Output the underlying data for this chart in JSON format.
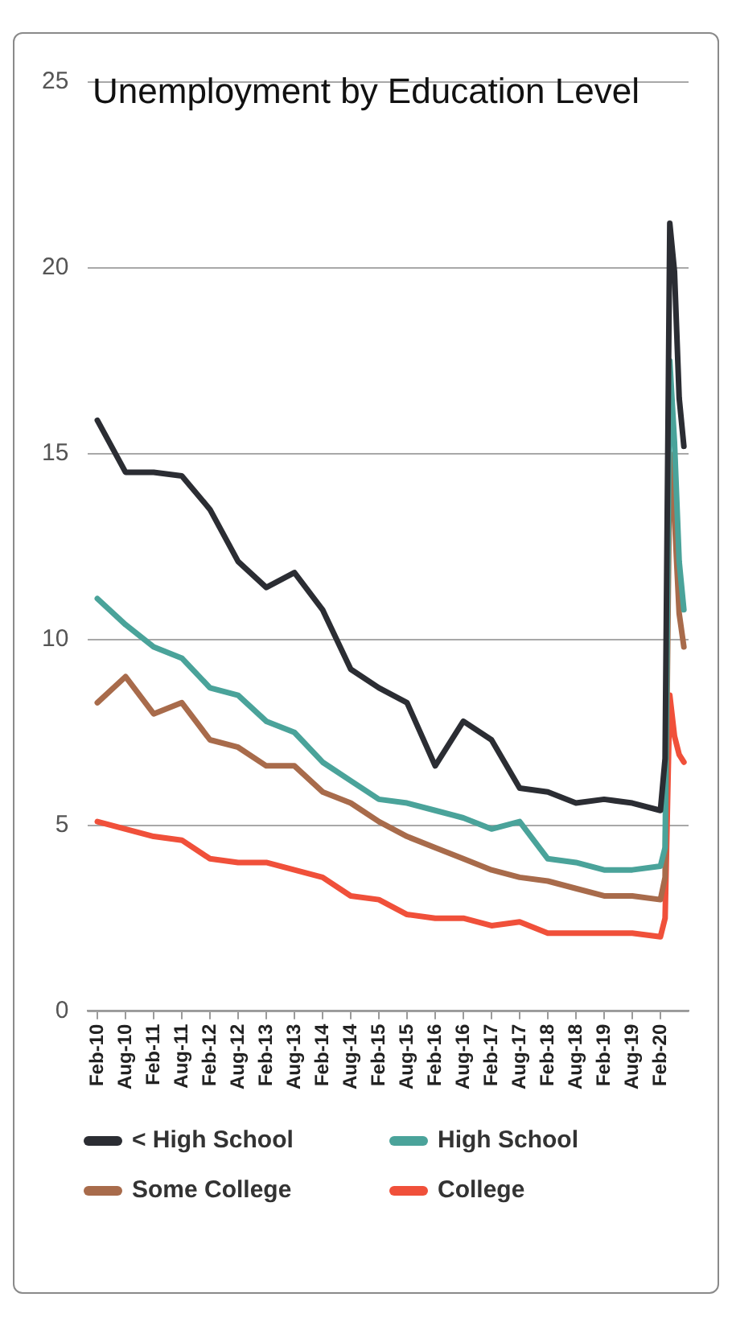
{
  "chart_data": {
    "type": "line",
    "title": "Unemployment by Education Level",
    "x": [
      "2010-02",
      "2010-08",
      "2011-02",
      "2011-08",
      "2012-02",
      "2012-08",
      "2013-02",
      "2013-08",
      "2014-02",
      "2014-08",
      "2015-02",
      "2015-08",
      "2016-02",
      "2016-08",
      "2017-02",
      "2017-08",
      "2018-02",
      "2018-08",
      "2019-02",
      "2019-08",
      "2020-02",
      "2020-03",
      "2020-04",
      "2020-05",
      "2020-06",
      "2020-07"
    ],
    "series": [
      {
        "name": "< High School",
        "color": "#2b2d33",
        "values": [
          15.9,
          14.5,
          14.5,
          14.4,
          13.5,
          12.1,
          11.4,
          11.8,
          10.8,
          9.2,
          8.7,
          8.3,
          6.6,
          7.8,
          7.3,
          6.0,
          5.9,
          5.6,
          5.7,
          5.6,
          5.4,
          6.8,
          21.2,
          19.9,
          16.5,
          15.2
        ]
      },
      {
        "name": "High School",
        "color": "#4aa39a",
        "values": [
          11.1,
          10.4,
          9.8,
          9.5,
          8.7,
          8.5,
          7.8,
          7.5,
          6.7,
          6.2,
          5.7,
          5.6,
          5.4,
          5.2,
          4.9,
          5.1,
          4.1,
          4.0,
          3.8,
          3.8,
          3.9,
          4.4,
          17.5,
          15.3,
          12.1,
          10.8
        ]
      },
      {
        "name": "Some College",
        "color": "#a86b4b",
        "values": [
          8.3,
          9.0,
          8.0,
          8.3,
          7.3,
          7.1,
          6.6,
          6.6,
          5.9,
          5.6,
          5.1,
          4.7,
          4.4,
          4.1,
          3.8,
          3.6,
          3.5,
          3.3,
          3.1,
          3.1,
          3.0,
          3.6,
          15.0,
          13.3,
          10.7,
          9.8
        ]
      },
      {
        "name": "College",
        "color": "#f0503a",
        "values": [
          5.1,
          4.9,
          4.7,
          4.6,
          4.1,
          4.0,
          4.0,
          3.8,
          3.6,
          3.1,
          3.0,
          2.6,
          2.5,
          2.5,
          2.3,
          2.4,
          2.1,
          2.1,
          2.1,
          2.1,
          2.0,
          2.5,
          8.5,
          7.4,
          6.9,
          6.7
        ]
      }
    ],
    "xlim": [
      "2009-12",
      "2020-08"
    ],
    "xticks": [
      {
        "value": "2010-02",
        "label": "Feb-10"
      },
      {
        "value": "2010-08",
        "label": "Aug-10"
      },
      {
        "value": "2011-02",
        "label": "Feb-11"
      },
      {
        "value": "2011-08",
        "label": "Aug-11"
      },
      {
        "value": "2012-02",
        "label": "Feb-12"
      },
      {
        "value": "2012-08",
        "label": "Aug-12"
      },
      {
        "value": "2013-02",
        "label": "Feb-13"
      },
      {
        "value": "2013-08",
        "label": "Aug-13"
      },
      {
        "value": "2014-02",
        "label": "Feb-14"
      },
      {
        "value": "2014-08",
        "label": "Aug-14"
      },
      {
        "value": "2015-02",
        "label": "Feb-15"
      },
      {
        "value": "2015-08",
        "label": "Aug-15"
      },
      {
        "value": "2016-02",
        "label": "Feb-16"
      },
      {
        "value": "2016-08",
        "label": "Aug-16"
      },
      {
        "value": "2017-02",
        "label": "Feb-17"
      },
      {
        "value": "2017-08",
        "label": "Aug-17"
      },
      {
        "value": "2018-02",
        "label": "Feb-18"
      },
      {
        "value": "2018-08",
        "label": "Aug-18"
      },
      {
        "value": "2019-02",
        "label": "Feb-19"
      },
      {
        "value": "2019-08",
        "label": "Aug-19"
      },
      {
        "value": "2020-02",
        "label": "Feb-20"
      }
    ],
    "ylim": [
      0,
      25
    ],
    "yticks": [
      0,
      5,
      10,
      15,
      20,
      25
    ],
    "grid": "y",
    "legend": "bottom",
    "marker": "none",
    "line_style": "solid"
  }
}
